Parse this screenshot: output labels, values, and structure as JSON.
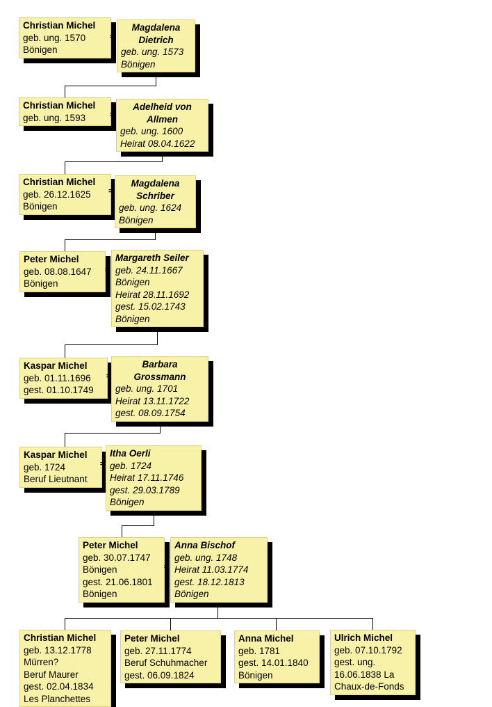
{
  "chart_title": "",
  "symbols": {
    "marriage": "="
  },
  "colors": {
    "box_fill": "#F8F1A8",
    "box_border": "#DCD282",
    "box_shadow": "#000000",
    "connector": "#000000",
    "text": "#000000",
    "background": "#FFFFFF"
  },
  "people": {
    "g1h": {
      "name_lines": [
        "Christian Michel"
      ],
      "detail_lines": [
        "geb. ung. 1570",
        "Bönigen"
      ]
    },
    "g1w": {
      "name_lines": [
        "Magdalena",
        "Dietrich"
      ],
      "detail_lines": [
        "geb. ung. 1573",
        "Bönigen"
      ]
    },
    "g2h": {
      "name_lines": [
        "Christian Michel"
      ],
      "detail_lines": [
        "geb. ung. 1593"
      ]
    },
    "g2w": {
      "name_lines": [
        "Adelheid von",
        "Allmen"
      ],
      "detail_lines": [
        "geb. ung. 1600",
        "Heirat 08.04.1622"
      ]
    },
    "g3h": {
      "name_lines": [
        "Christian Michel"
      ],
      "detail_lines": [
        "geb. 26.12.1625",
        "Bönigen"
      ]
    },
    "g3w": {
      "name_lines": [
        "Magdalena",
        "Schriber"
      ],
      "detail_lines": [
        "geb. ung. 1624",
        "Bönigen"
      ]
    },
    "g4h": {
      "name_lines": [
        "Peter Michel"
      ],
      "detail_lines": [
        "geb. 08.08.1647",
        "Bönigen"
      ]
    },
    "g4w": {
      "name_lines": [
        "Margareth Seiler"
      ],
      "detail_lines": [
        "geb. 24.11.1667",
        "Bönigen",
        "Heirat 28.11.1692",
        "gest. 15.02.1743",
        "Bönigen"
      ]
    },
    "g5h": {
      "name_lines": [
        "Kaspar Michel"
      ],
      "detail_lines": [
        "geb. 01.11.1696",
        "gest. 01.10.1749"
      ]
    },
    "g5w": {
      "name_lines": [
        "Barbara",
        "Grossmann"
      ],
      "detail_lines": [
        "geb. ung. 1701",
        "Heirat 13.11.1722",
        "gest. 08.09.1754"
      ]
    },
    "g6h": {
      "name_lines": [
        "Kaspar Michel"
      ],
      "detail_lines": [
        "geb. 1724",
        "Beruf Lieutnant"
      ]
    },
    "g6w": {
      "name_lines": [
        "Itha Oerli"
      ],
      "detail_lines": [
        "geb. 1724",
        "Heirat 17.11.1746",
        "gest. 29.03.1789",
        "Bönigen"
      ]
    },
    "g7h": {
      "name_lines": [
        "Peter Michel"
      ],
      "detail_lines": [
        "geb. 30.07.1747",
        "Bönigen",
        "gest. 21.06.1801",
        "Bönigen"
      ]
    },
    "g7w": {
      "name_lines": [
        "Anna Bischof"
      ],
      "detail_lines": [
        "geb. ung. 1748",
        "Heirat 11.03.1774",
        "gest. 18.12.1813",
        "Bönigen"
      ]
    },
    "c1": {
      "name_lines": [
        "Christian Michel"
      ],
      "detail_lines": [
        "geb. 13.12.1778",
        "Mürren?",
        "Beruf Maurer",
        "gest. 02.04.1834",
        "Les Planchettes"
      ]
    },
    "c2": {
      "name_lines": [
        "Peter Michel"
      ],
      "detail_lines": [
        "geb. 27.11.1774",
        "Beruf Schuhmacher",
        "gest. 06.09.1824"
      ]
    },
    "c3": {
      "name_lines": [
        "Anna Michel"
      ],
      "detail_lines": [
        "geb. 1781",
        "gest. 14.01.1840",
        "Bönigen"
      ]
    },
    "c4": {
      "name_lines": [
        "Ulrich Michel"
      ],
      "detail_lines": [
        "geb. 07.10.1792",
        "gest. ung.",
        "16.06.1838 La",
        "Chaux-de-Fonds"
      ]
    }
  }
}
